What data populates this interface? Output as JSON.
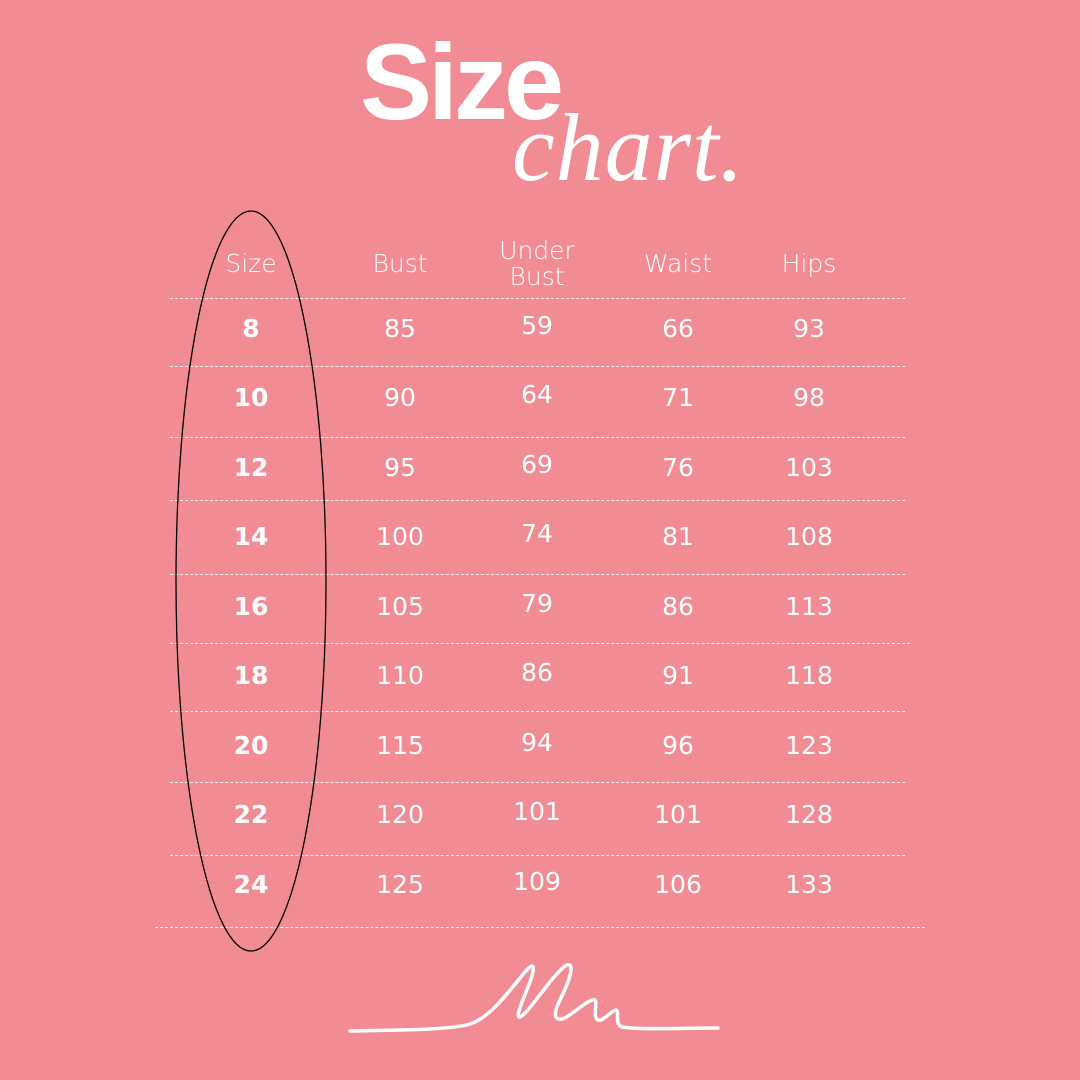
{
  "title": {
    "line1": "Size",
    "line2": "chart."
  },
  "colors": {
    "background": "#F28C94",
    "text": "#FFFFFF",
    "highlight_ellipse": "#000000"
  },
  "table": {
    "headers": [
      "Size",
      "Bust",
      "Under\nBust",
      "Waist",
      "Hips"
    ],
    "rows": [
      [
        "8",
        "85",
        "59",
        "66",
        "93"
      ],
      [
        "10",
        "90",
        "64",
        "71",
        "98"
      ],
      [
        "12",
        "95",
        "69",
        "76",
        "103"
      ],
      [
        "14",
        "100",
        "74",
        "81",
        "108"
      ],
      [
        "16",
        "105",
        "79",
        "86",
        "113"
      ],
      [
        "18",
        "110",
        "86",
        "91",
        "118"
      ],
      [
        "20",
        "115",
        "94",
        "96",
        "123"
      ],
      [
        "22",
        "120",
        "101",
        "101",
        "128"
      ],
      [
        "24",
        "125",
        "109",
        "106",
        "133"
      ]
    ]
  },
  "logo": {
    "icon": "signature-scribble-icon"
  }
}
